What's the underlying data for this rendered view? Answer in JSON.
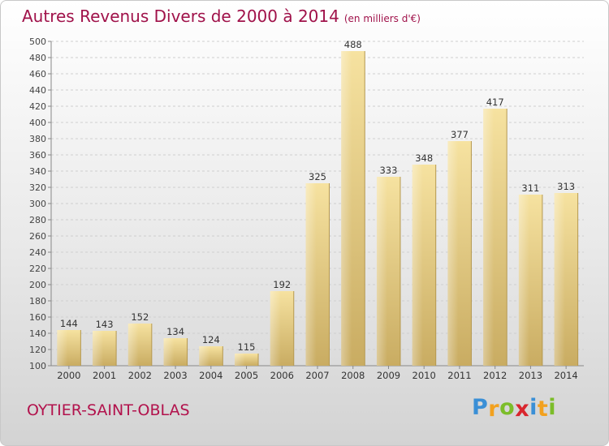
{
  "header": {
    "title": "Autres Revenus Divers de 2000 à 2014",
    "unit": "(en milliers d'€)"
  },
  "footer": {
    "place": "OYTIER-SAINT-OBLAS",
    "brand_letters": [
      "P",
      "r",
      "o",
      "x",
      "i",
      "t",
      "i"
    ],
    "brand_colors": [
      "#3a8fd6",
      "#f2a11f",
      "#7cbd2a",
      "#d9262e",
      "#3a8fd6",
      "#f2a11f",
      "#7cbd2a"
    ]
  },
  "chart_data": {
    "type": "bar",
    "categories": [
      "2000",
      "2001",
      "2002",
      "2003",
      "2004",
      "2005",
      "2006",
      "2007",
      "2008",
      "2009",
      "2010",
      "2011",
      "2012",
      "2013",
      "2014"
    ],
    "values": [
      144,
      143,
      152,
      134,
      124,
      115,
      192,
      325,
      488,
      333,
      348,
      377,
      417,
      311,
      313
    ],
    "ylim": [
      100,
      500
    ],
    "ytick_step": 20,
    "grid": true,
    "bar_color": "#e8cf82"
  }
}
